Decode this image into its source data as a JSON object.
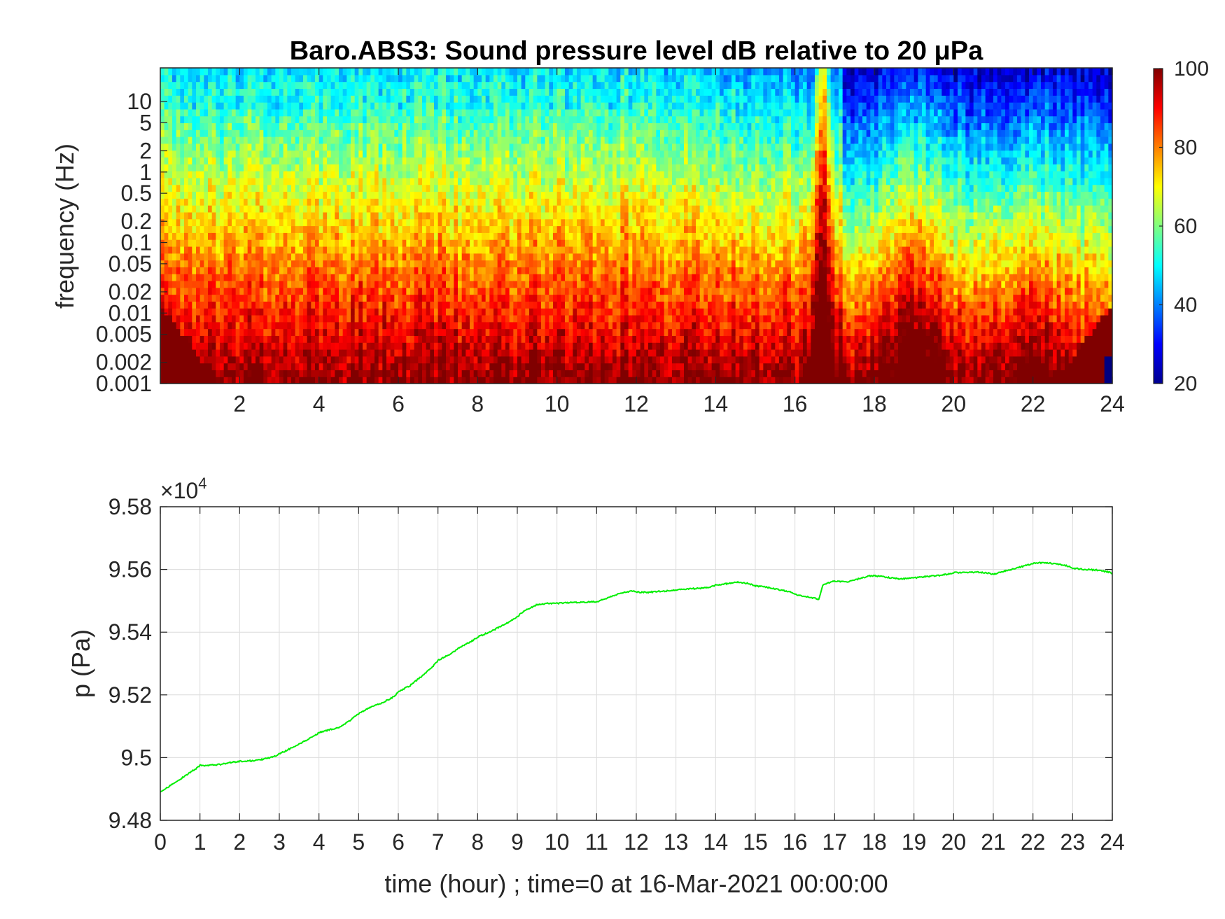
{
  "chart_data": [
    {
      "type": "heatmap",
      "title": "Baro.ABS3: Sound pressure level dB relative to 20 μPa",
      "ylabel": "frequency (Hz)",
      "xlabel": "",
      "x_range": [
        0,
        24
      ],
      "x_ticks": [
        2,
        4,
        6,
        8,
        10,
        12,
        14,
        16,
        18,
        20,
        22,
        24
      ],
      "y_scale": "log",
      "y_range": [
        0.001,
        30
      ],
      "y_ticks": [
        0.001,
        0.002,
        0.005,
        0.01,
        0.02,
        0.05,
        0.1,
        0.2,
        0.5,
        1,
        2,
        5,
        10
      ],
      "y_tick_labels": [
        "0.001",
        "0.002",
        "0.005",
        "0.01",
        "0.02",
        "0.05",
        "0.1",
        "0.2",
        "0.5",
        "1",
        "2",
        "5",
        "10"
      ],
      "colormap": "jet",
      "colorbar": {
        "range": [
          20,
          100
        ],
        "ticks": [
          20,
          40,
          60,
          80,
          100
        ],
        "tick_labels": [
          "20",
          "40",
          "60",
          "80",
          "100"
        ],
        "placement": "right"
      },
      "features": [
        {
          "x": 16.7,
          "desc": "strong broadband event"
        }
      ]
    },
    {
      "type": "line",
      "title": "",
      "xlabel": "time (hour) ; time=0 at 16-Mar-2021 00:00:00",
      "ylabel": "p (Pa)",
      "x_range": [
        0,
        24
      ],
      "x_ticks": [
        0,
        1,
        2,
        3,
        4,
        5,
        6,
        7,
        8,
        9,
        10,
        11,
        12,
        13,
        14,
        15,
        16,
        17,
        18,
        19,
        20,
        21,
        22,
        23,
        24
      ],
      "ylim": [
        94800,
        95800
      ],
      "y_ticks": [
        94800,
        95000,
        95200,
        95400,
        95600,
        95800
      ],
      "y_tick_labels": [
        "9.48",
        "9.5",
        "9.52",
        "9.54",
        "9.56",
        "9.58"
      ],
      "y_exponent_label": "×10",
      "y_exponent_power": "4",
      "grid": true,
      "line_color": "#00ee00",
      "series": [
        {
          "x": [
            0,
            0.3,
            0.6,
            0.9,
            1.0,
            1.2,
            1.5,
            1.8,
            2.0,
            2.3,
            2.6,
            2.9,
            3.0,
            3.3,
            3.6,
            3.9,
            4.0,
            4.3,
            4.5,
            4.8,
            5.0,
            5.3,
            5.6,
            5.9,
            6.0,
            6.3,
            6.6,
            6.9,
            7.0,
            7.3,
            7.6,
            7.9,
            8.0,
            8.3,
            8.6,
            8.9,
            9.0,
            9.2,
            9.5,
            9.8,
            10.0,
            10.3,
            10.6,
            10.9,
            11.0,
            11.3,
            11.6,
            11.9,
            12.0,
            12.3,
            12.6,
            12.9,
            13.0,
            13.3,
            13.6,
            13.9,
            14.0,
            14.3,
            14.5,
            14.8,
            15.0,
            15.3,
            15.6,
            15.9,
            16.0,
            16.2,
            16.4,
            16.5,
            16.6,
            16.7,
            16.9,
            17.0,
            17.3,
            17.6,
            17.9,
            18.0,
            18.3,
            18.6,
            18.9,
            19.0,
            19.3,
            19.6,
            19.9,
            20.0,
            20.3,
            20.6,
            20.9,
            21.0,
            21.3,
            21.6,
            21.9,
            22.0,
            22.3,
            22.6,
            22.9,
            23.0,
            23.3,
            23.6,
            23.9,
            24.0
          ],
          "y": [
            94890,
            94915,
            94940,
            94965,
            94975,
            94975,
            94978,
            94985,
            94988,
            94990,
            94995,
            95005,
            95012,
            95030,
            95050,
            95070,
            95080,
            95090,
            95095,
            95120,
            95140,
            95160,
            95175,
            95195,
            95210,
            95230,
            95260,
            95295,
            95310,
            95330,
            95355,
            95375,
            95385,
            95400,
            95420,
            95440,
            95450,
            95470,
            95488,
            95492,
            95492,
            95494,
            95495,
            95497,
            95497,
            95510,
            95525,
            95532,
            95528,
            95527,
            95530,
            95533,
            95535,
            95538,
            95540,
            95545,
            95550,
            95555,
            95560,
            95556,
            95548,
            95543,
            95535,
            95528,
            95520,
            95515,
            95510,
            95508,
            95505,
            95550,
            95560,
            95562,
            95560,
            95570,
            95580,
            95580,
            95575,
            95570,
            95572,
            95573,
            95577,
            95580,
            95586,
            95590,
            95590,
            95592,
            95588,
            95585,
            95595,
            95605,
            95615,
            95620,
            95622,
            95618,
            95610,
            95604,
            95600,
            95598,
            95592,
            95588
          ]
        }
      ]
    }
  ]
}
